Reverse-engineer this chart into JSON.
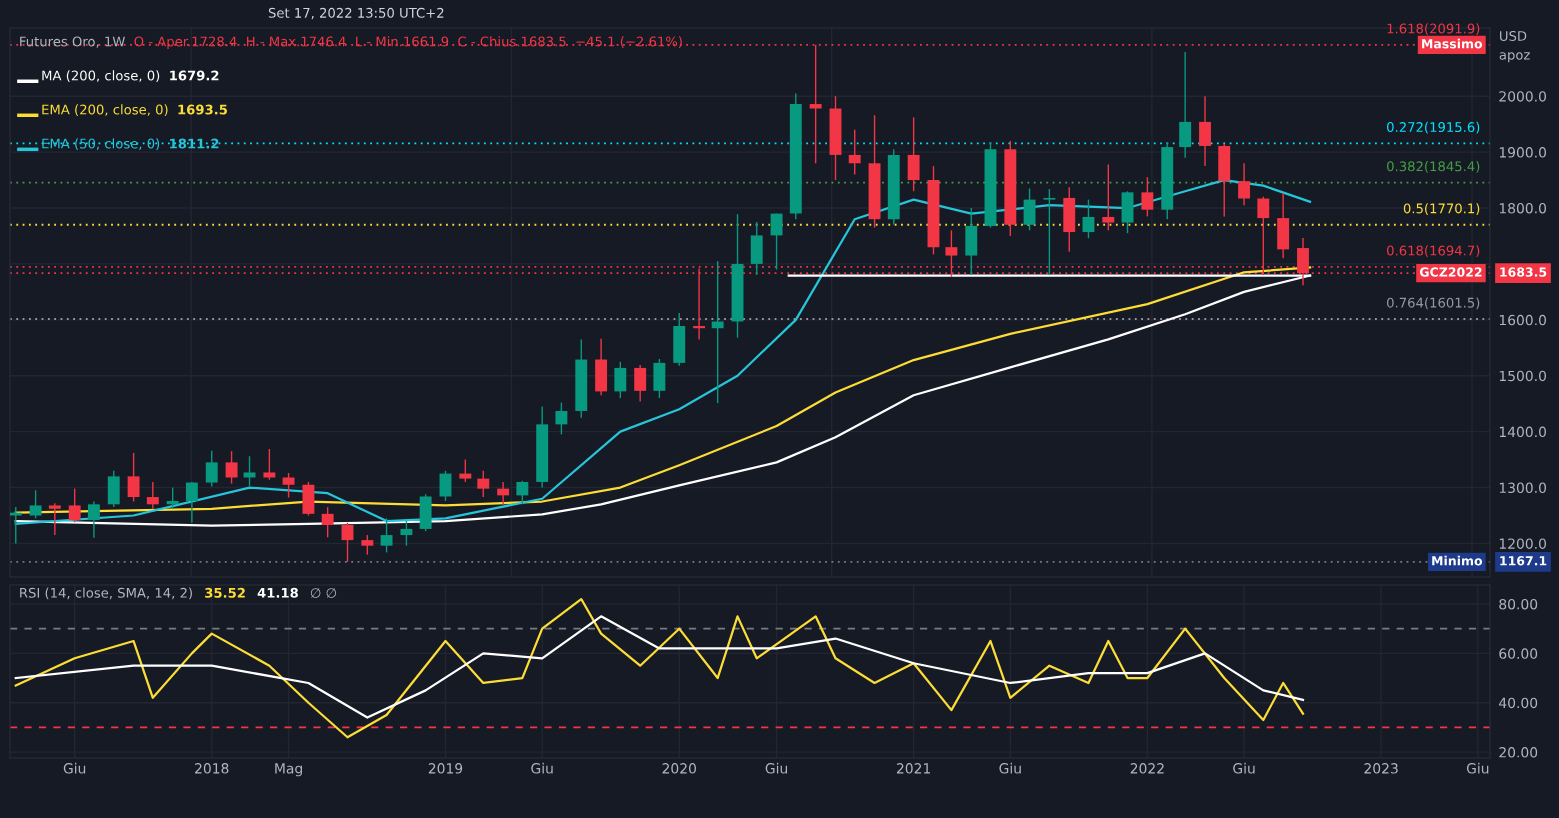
{
  "chart_data": [
    {
      "type": "candlestick",
      "title": "Futures Oro, 1W",
      "subtitle": "Set 17, 2022 13:50 UTC+2",
      "ylabel": "USD\napoz",
      "annotations": [
        "O - Aper.1728.4  H - Max.1746.4  L - Min.1661.9  C - Chius.1683.5  −45.1 (−2.61%)",
        "Massimo",
        "GCZ2022",
        "Minimo",
        "1679.2",
        "1693.5",
        "1811.2"
      ],
      "colors": [
        "#089981",
        "#089981",
        "#f23645",
        "#f23645",
        "#089981",
        "#089981",
        "#f23645",
        "#f23645",
        "#089981",
        "#089981",
        "#089981",
        "#f23645",
        "#089981",
        "#f23645",
        "#f23645",
        "#f23645",
        "#f23645",
        "#f23645",
        "#f23645",
        "#089981",
        "#089981",
        "#089981",
        "#089981",
        "#f23645",
        "#f23645",
        "#f23645",
        "#089981",
        "#089981",
        "#089981",
        "#089981",
        "#f23645",
        "#089981",
        "#f23645",
        "#089981",
        "#089981",
        "#f23645",
        "#089981",
        "#089981",
        "#089981",
        "#089981",
        "#089981",
        "#f23645",
        "#f23645",
        "#f23645",
        "#f23645",
        "#089981",
        "#f23645",
        "#f23645",
        "#f23645",
        "#089981",
        "#089981",
        "#f23645",
        "#089981",
        "#089981",
        "#f23645",
        "#089981",
        "#f23645",
        "#089981",
        "#f23645",
        "#089981",
        "#089981",
        "#f23645",
        "#f23645",
        "#f23645",
        "#f23645",
        "#f23645",
        "#f23645"
      ],
      "x": [
        "2017-03",
        "2017-04",
        "2017-05",
        "2017-06",
        "2017-07",
        "2017-08",
        "2017-09",
        "2017-10",
        "2017-11",
        "2017-12",
        "2018-01",
        "2018-02",
        "2018-03",
        "2018-04",
        "2018-05",
        "2018-06",
        "2018-07",
        "2018-08",
        "2018-09",
        "2018-10",
        "2018-11",
        "2018-12",
        "2019-01",
        "2019-02",
        "2019-03",
        "2019-04",
        "2019-05",
        "2019-06",
        "2019-07",
        "2019-08",
        "2019-09",
        "2019-10",
        "2019-11",
        "2019-12",
        "2020-01",
        "2020-02",
        "2020-03",
        "2020-04",
        "2020-05",
        "2020-06",
        "2020-07",
        "2020-08",
        "2020-09",
        "2020-10",
        "2020-11",
        "2020-12",
        "2021-01",
        "2021-02",
        "2021-03",
        "2021-04",
        "2021-05",
        "2021-06",
        "2021-07",
        "2021-08",
        "2021-09",
        "2021-10",
        "2021-11",
        "2021-12",
        "2022-01",
        "2022-02",
        "2022-03",
        "2022-04",
        "2022-05",
        "2022-06",
        "2022-07",
        "2022-08",
        "2022-09"
      ],
      "ohlc": [
        [
          1250,
          1265,
          1200,
          1255
        ],
        [
          1250,
          1295,
          1245,
          1268
        ],
        [
          1268,
          1272,
          1215,
          1262
        ],
        [
          1268,
          1298,
          1238,
          1242
        ],
        [
          1242,
          1275,
          1210,
          1270
        ],
        [
          1270,
          1330,
          1265,
          1320
        ],
        [
          1320,
          1362,
          1275,
          1283
        ],
        [
          1283,
          1310,
          1262,
          1270
        ],
        [
          1270,
          1300,
          1262,
          1276
        ],
        [
          1276,
          1310,
          1237,
          1309
        ],
        [
          1309,
          1366,
          1302,
          1345
        ],
        [
          1345,
          1365,
          1307,
          1318
        ],
        [
          1318,
          1356,
          1303,
          1327
        ],
        [
          1327,
          1369,
          1314,
          1318
        ],
        [
          1318,
          1326,
          1282,
          1305
        ],
        [
          1305,
          1310,
          1250,
          1253
        ],
        [
          1253,
          1265,
          1211,
          1233
        ],
        [
          1233,
          1237,
          1167.1,
          1206
        ],
        [
          1206,
          1215,
          1180,
          1196
        ],
        [
          1196,
          1245,
          1184,
          1215
        ],
        [
          1215,
          1240,
          1196,
          1226
        ],
        [
          1226,
          1288,
          1222,
          1284
        ],
        [
          1284,
          1330,
          1276,
          1325
        ],
        [
          1325,
          1350,
          1310,
          1316
        ],
        [
          1316,
          1330,
          1283,
          1298
        ],
        [
          1298,
          1310,
          1270,
          1286
        ],
        [
          1286,
          1312,
          1270,
          1310
        ],
        [
          1310,
          1445,
          1300,
          1413
        ],
        [
          1413,
          1452,
          1395,
          1437
        ],
        [
          1437,
          1565,
          1425,
          1529
        ],
        [
          1529,
          1566,
          1465,
          1472
        ],
        [
          1472,
          1525,
          1460,
          1514
        ],
        [
          1514,
          1519,
          1454,
          1473
        ],
        [
          1473,
          1530,
          1460,
          1523
        ],
        [
          1523,
          1612,
          1518,
          1589
        ],
        [
          1589,
          1692,
          1565,
          1585
        ],
        [
          1585,
          1705,
          1451,
          1597
        ],
        [
          1597,
          1789,
          1568,
          1700
        ],
        [
          1700,
          1775,
          1680,
          1751
        ],
        [
          1751,
          1790,
          1690,
          1790
        ],
        [
          1790,
          2005,
          1780,
          1986
        ],
        [
          1986,
          2091.9,
          1880,
          1978
        ],
        [
          1978,
          2000,
          1850,
          1895
        ],
        [
          1895,
          1940,
          1860,
          1880
        ],
        [
          1880,
          1966,
          1765,
          1780
        ],
        [
          1780,
          1905,
          1770,
          1895
        ],
        [
          1895,
          1962,
          1830,
          1850
        ],
        [
          1850,
          1875,
          1717,
          1730
        ],
        [
          1730,
          1760,
          1677,
          1715
        ],
        [
          1715,
          1800,
          1680,
          1768
        ],
        [
          1768,
          1918,
          1765,
          1905
        ],
        [
          1905,
          1920,
          1750,
          1770
        ],
        [
          1770,
          1835,
          1760,
          1815
        ],
        [
          1815,
          1834,
          1680,
          1818
        ],
        [
          1818,
          1837,
          1722,
          1757
        ],
        [
          1757,
          1815,
          1746,
          1784
        ],
        [
          1784,
          1878,
          1760,
          1774
        ],
        [
          1774,
          1830,
          1755,
          1828
        ],
        [
          1828,
          1855,
          1785,
          1797
        ],
        [
          1797,
          1918,
          1780,
          1909
        ],
        [
          1909,
          2079,
          1890,
          1954
        ],
        [
          1954,
          2000,
          1875,
          1911
        ],
        [
          1911,
          1915,
          1785,
          1848
        ],
        [
          1848,
          1880,
          1805,
          1817
        ],
        [
          1817,
          1820,
          1680,
          1782
        ],
        [
          1782,
          1826,
          1710,
          1726
        ],
        [
          1728.4,
          1746.4,
          1661.9,
          1683.5
        ]
      ],
      "series": [
        {
          "type": "line",
          "name": "MA (200, close, 0)",
          "color": "#ffffff",
          "x": [
            "2017-03",
            "2018-01",
            "2018-06",
            "2019-01",
            "2019-06",
            "2019-09",
            "2020-01",
            "2020-06",
            "2020-09",
            "2021-01",
            "2021-06",
            "2021-11",
            "2022-03",
            "2022-06",
            "2022-09-12"
          ],
          "values": [
            1240,
            1232,
            1235,
            1240,
            1252,
            1270,
            1304,
            1345,
            1390,
            1465,
            1515,
            1565,
            1610,
            1650,
            1679.2
          ]
        },
        {
          "type": "line",
          "name": "EMA (200, close, 0)",
          "color": "#fddd35",
          "x": [
            "2017-03",
            "2018-01",
            "2018-06",
            "2019-01",
            "2019-06",
            "2019-10",
            "2020-01",
            "2020-06",
            "2020-09",
            "2021-01",
            "2021-06",
            "2022-01",
            "2022-06",
            "2022-09-12"
          ],
          "values": [
            1255,
            1262,
            1275,
            1268,
            1275,
            1300,
            1340,
            1410,
            1470,
            1528,
            1575,
            1628,
            1685,
            1693.5
          ]
        },
        {
          "type": "line",
          "name": "EMA (50, close, 0)",
          "color": "#26c6da",
          "x": [
            "2017-03",
            "2017-09",
            "2018-03",
            "2018-07",
            "2018-10",
            "2019-01",
            "2019-06",
            "2019-10",
            "2020-01",
            "2020-04",
            "2020-07",
            "2020-10",
            "2021-01",
            "2021-04",
            "2021-08",
            "2021-12",
            "2022-03",
            "2022-05",
            "2022-07",
            "2022-09-12"
          ],
          "values": [
            1235,
            1250,
            1300,
            1290,
            1240,
            1245,
            1280,
            1400,
            1440,
            1500,
            1600,
            1780,
            1815,
            1790,
            1805,
            1800,
            1830,
            1850,
            1840,
            1811.2
          ]
        },
        {
          "type": "line",
          "color": "#ffffff",
          "x": [
            "2020-06-20",
            "2022-09-12"
          ],
          "values": [
            1679,
            1679
          ]
        }
      ],
      "ref_lines": [
        {
          "axis": "y",
          "value": 2091.9,
          "label": "1.618(2091.9)",
          "color": "#f23645",
          "line_style": "dotted"
        },
        {
          "axis": "y",
          "value": 1915.6,
          "label": "0.272(1915.6)",
          "color": "#00e5ff",
          "line_style": "dotted"
        },
        {
          "axis": "y",
          "value": 1845.4,
          "label": "0.382(1845.4)",
          "color": "#43a047",
          "line_style": "dotted"
        },
        {
          "axis": "y",
          "value": 1770.1,
          "label": "0.5(1770.1)",
          "color": "#fddd35",
          "line_style": "dotted"
        },
        {
          "axis": "y",
          "value": 1694.7,
          "label": "0.618(1694.7)",
          "color": "#f23645",
          "line_style": "dotted"
        },
        {
          "axis": "y",
          "value": 1601.5,
          "label": "0.764(1601.5)",
          "color": "#9598a1",
          "line_style": "dotted"
        },
        {
          "axis": "y",
          "value": 1683.5,
          "label": "1683.5",
          "color": "#f23645",
          "line_style": "dotted"
        },
        {
          "axis": "y",
          "value": 1167.1,
          "label": "1167.1",
          "color": "#787b86",
          "line_style": "dotted"
        }
      ],
      "xlim": [
        "2017-02-20",
        "2023-06-20"
      ],
      "ylim": [
        1140,
        2122
      ],
      "yticks": [
        {
          "value": 1200,
          "label": "1200.0"
        },
        {
          "value": 1300,
          "label": "1300.0"
        },
        {
          "value": 1400,
          "label": "1400.0"
        },
        {
          "value": 1500,
          "label": "1500.0"
        },
        {
          "value": 1600,
          "label": "1600.0"
        },
        {
          "value": 1700,
          "label": null
        },
        {
          "value": 1800,
          "label": "1800.0"
        },
        {
          "value": 1900,
          "label": "1900.0"
        },
        {
          "value": 2000,
          "label": "2000.0"
        }
      ],
      "grid": true,
      "legend": "top left",
      "tick_labels": "y"
    },
    {
      "type": "line",
      "title": "RSI (14, close, SMA, 14, 2)",
      "annotations": [
        "35.52",
        "41.18",
        "∅ ∅"
      ],
      "series": [
        {
          "color": "#fddd35",
          "x": [
            "2017-03",
            "2017-06",
            "2017-09",
            "2017-10",
            "2017-12",
            "2018-01",
            "2018-04",
            "2018-06",
            "2018-08",
            "2018-10",
            "2019-01",
            "2019-03",
            "2019-05",
            "2019-06",
            "2019-08",
            "2019-09",
            "2019-11",
            "2020-01",
            "2020-03",
            "2020-04",
            "2020-05",
            "2020-08",
            "2020-09",
            "2020-11",
            "2021-01",
            "2021-03",
            "2021-05",
            "2021-06",
            "2021-08",
            "2021-10",
            "2021-11",
            "2021-12",
            "2022-01",
            "2022-03",
            "2022-05",
            "2022-07",
            "2022-08",
            "2022-09"
          ],
          "values": [
            47,
            58,
            65,
            42,
            60,
            68,
            55,
            40,
            26,
            35,
            65,
            48,
            50,
            70,
            82,
            68,
            55,
            70,
            50,
            75,
            58,
            75,
            58,
            48,
            56,
            37,
            65,
            42,
            55,
            48,
            65,
            50,
            50,
            70,
            50,
            33,
            48,
            35.52
          ]
        },
        {
          "color": "#ffffff",
          "x": [
            "2017-03",
            "2017-09",
            "2018-01",
            "2018-06",
            "2018-09",
            "2018-12",
            "2019-03",
            "2019-06",
            "2019-09",
            "2019-12",
            "2020-03",
            "2020-06",
            "2020-09",
            "2021-01",
            "2021-06",
            "2021-10",
            "2022-01",
            "2022-04",
            "2022-07",
            "2022-09"
          ],
          "values": [
            50,
            55,
            55,
            48,
            34,
            45,
            60,
            58,
            75,
            62,
            62,
            62,
            66,
            56,
            48,
            52,
            52,
            60,
            45,
            41.18
          ]
        }
      ],
      "ref_lines": [
        {
          "axis": "y",
          "value": 70,
          "color": "#787b86",
          "line_style": "dashed"
        },
        {
          "axis": "y",
          "value": 30,
          "color": "#f23645",
          "line_style": "dashed"
        }
      ],
      "xlim": [
        "2017-02-20",
        "2023-06-20"
      ],
      "ylim": [
        17.6,
        87.7
      ],
      "xticks": [
        {
          "value": "2017-06-01",
          "label": "Giu"
        },
        {
          "value": "2018-01-01",
          "label": "2018"
        },
        {
          "value": "2018-05-01",
          "label": "Mag"
        },
        {
          "value": "2019-01-01",
          "label": "2019"
        },
        {
          "value": "2019-06-01",
          "label": "Giu"
        },
        {
          "value": "2020-01-01",
          "label": "2020"
        },
        {
          "value": "2020-06-01",
          "label": "Giu"
        },
        {
          "value": "2021-01-01",
          "label": "2021"
        },
        {
          "value": "2021-06-01",
          "label": "Giu"
        },
        {
          "value": "2022-01-01",
          "label": "2022"
        },
        {
          "value": "2022-06-01",
          "label": "Giu"
        },
        {
          "value": "2023-01-01",
          "label": "2023"
        },
        {
          "value": "2023-06-01",
          "label": "Giu"
        }
      ],
      "yticks": [
        {
          "value": 20,
          "label": "20.00"
        },
        {
          "value": 40,
          "label": "40.00"
        },
        {
          "value": 60,
          "label": "60.00"
        },
        {
          "value": 80,
          "label": "80.00"
        }
      ],
      "grid": true
    }
  ]
}
